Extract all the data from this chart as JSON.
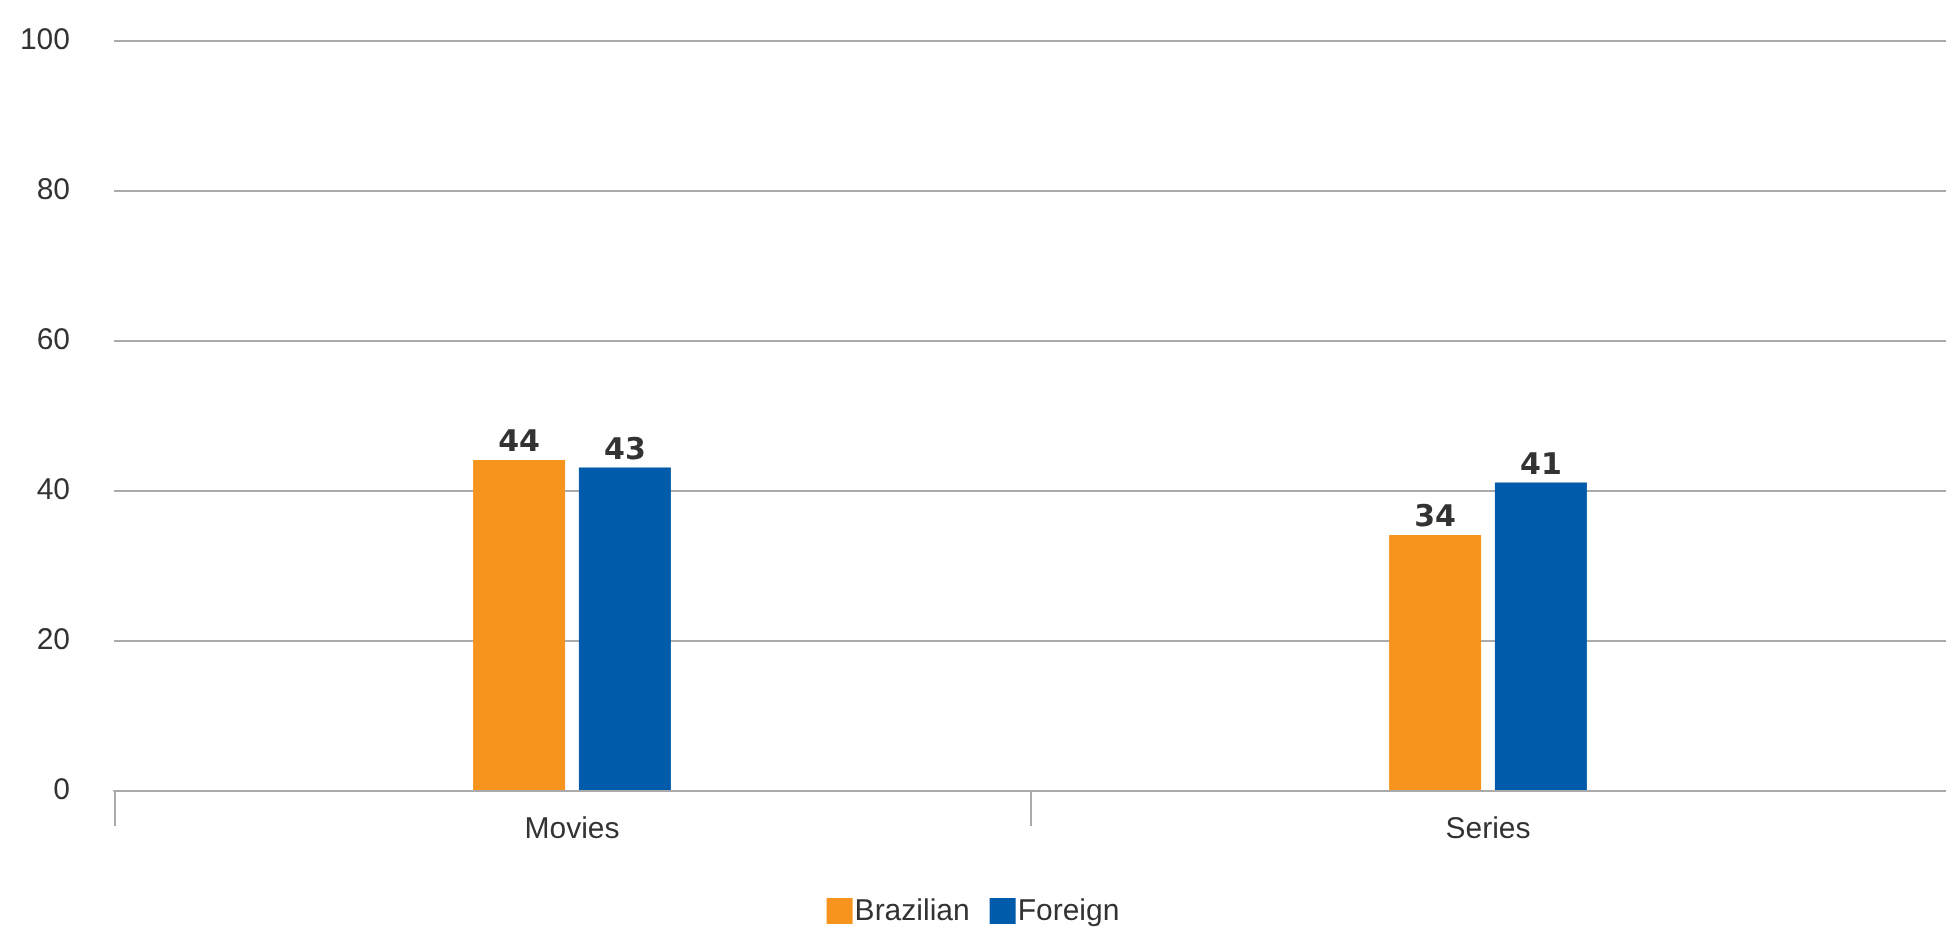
{
  "chart_data": {
    "type": "bar",
    "categories": [
      "Movies",
      "Series"
    ],
    "series": [
      {
        "name": "Brazilian",
        "color": "#f7941d",
        "values": [
          44,
          34
        ]
      },
      {
        "name": "Foreign",
        "color": "#005baa",
        "values": [
          43,
          41
        ]
      }
    ],
    "ylim": [
      0,
      100
    ],
    "yticks": [
      0,
      20,
      40,
      60,
      80,
      100
    ],
    "grid": "y",
    "legend": "bottom",
    "data_labels": true
  }
}
